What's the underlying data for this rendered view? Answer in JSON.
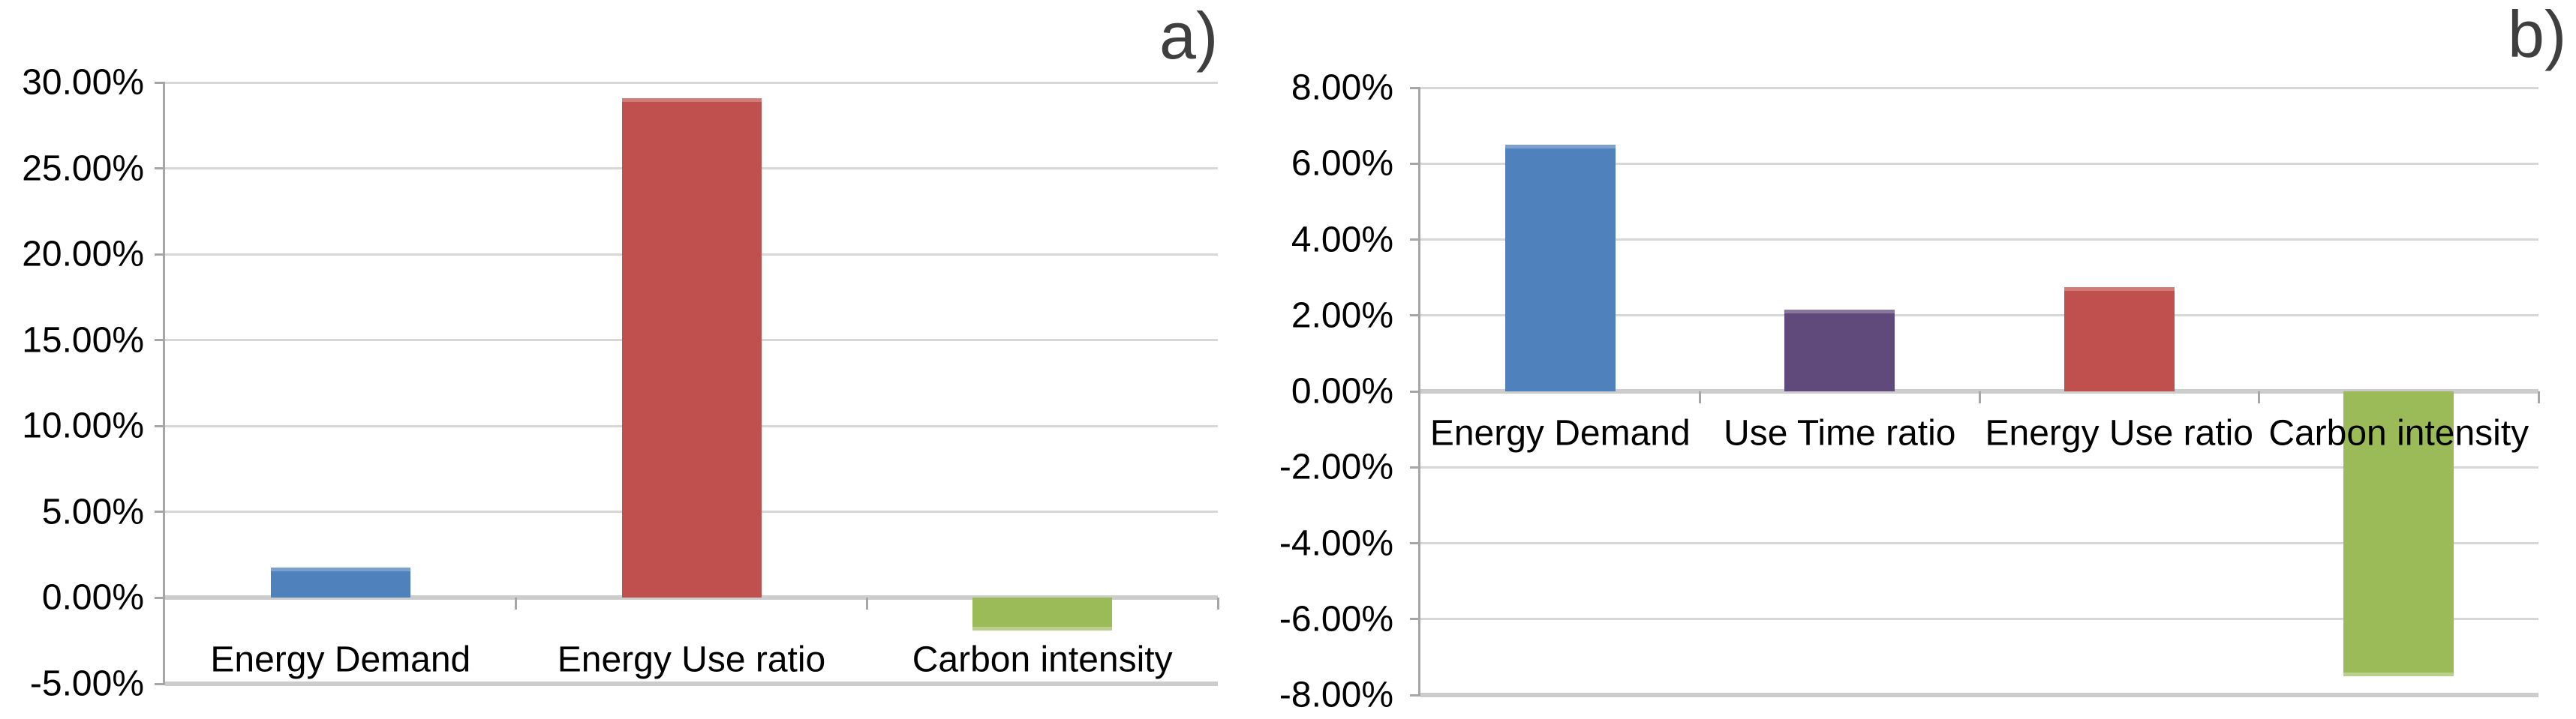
{
  "figure": {
    "description": "Two-panel bar chart figure comparing percentage changes of energy indicators",
    "panel_count": 2
  },
  "colors": {
    "gridline": "#d7d7d7",
    "zero_line": "#cccccc",
    "axis_line": "#a6a6a6",
    "panel_label": "#3f3f3f",
    "series_blue": "#4f81bd",
    "series_red": "#c0504d",
    "series_green": "#9bbb59",
    "series_purple": "#604a7b"
  },
  "chart_data": [
    {
      "panel_label": "a)",
      "type": "bar",
      "title": "",
      "xlabel": "",
      "ylabel": "",
      "categories": [
        "Energy Demand",
        "Energy Use ratio",
        "Carbon intensity"
      ],
      "values": [
        1.75,
        29.1,
        -1.9
      ],
      "value_unit": "percent",
      "bar_colors": [
        "#4f81bd",
        "#c0504d",
        "#9bbb59"
      ],
      "ylim": [
        -5,
        30
      ],
      "y_step": 5,
      "y_tick_labels": [
        "30.00%",
        "25.00%",
        "20.00%",
        "15.00%",
        "10.00%",
        "5.00%",
        "0.00%",
        "-5.00%"
      ],
      "grid": true,
      "legend": null
    },
    {
      "panel_label": "b)",
      "type": "bar",
      "title": "",
      "xlabel": "",
      "ylabel": "",
      "categories": [
        "Energy Demand",
        "Use Time ratio",
        "Energy Use ratio",
        "Carbon intensity"
      ],
      "values": [
        6.5,
        2.15,
        2.75,
        -7.5
      ],
      "value_unit": "percent",
      "bar_colors": [
        "#4f81bd",
        "#604a7b",
        "#c0504d",
        "#9bbb59"
      ],
      "ylim": [
        -8,
        8
      ],
      "y_step": 2,
      "y_tick_labels": [
        "8.00%",
        "6.00%",
        "4.00%",
        "2.00%",
        "0.00%",
        "-2.00%",
        "-4.00%",
        "-6.00%",
        "-8.00%"
      ],
      "grid": true,
      "legend": null
    }
  ]
}
